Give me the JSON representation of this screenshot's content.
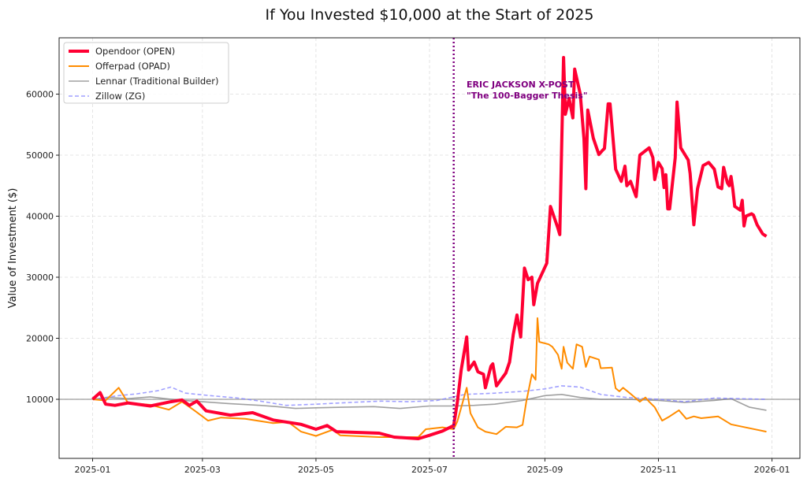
{
  "chart_data": {
    "type": "line",
    "title": "If You Invested $10,000 at the Start of 2025",
    "xlabel": "",
    "ylabel": "Value of Investment ($)",
    "xlim": [
      "2024-12-14",
      "2026-01-16"
    ],
    "ylim": [
      320,
      69230
    ],
    "x_ticks": [
      "2025-01",
      "2025-03",
      "2025-05",
      "2025-07",
      "2025-09",
      "2025-11",
      "2026-01"
    ],
    "y_ticks": [
      10000,
      20000,
      30000,
      40000,
      50000,
      60000
    ],
    "grid": true,
    "legend_position": "top-left",
    "reference_line": {
      "y": 10000,
      "color": "#999999"
    },
    "event_line": {
      "x": "2025-07-14",
      "color": "#800080",
      "label_line1": "ERIC JACKSON X-POST",
      "label_line2": "\"The 100-Bagger Thesis\""
    },
    "series": [
      {
        "name": "Opendoor (OPEN)",
        "color": "#ff0033",
        "style": "solid-thick",
        "x": [
          "2025-01-01",
          "2025-01-05",
          "2025-01-08",
          "2025-01-13",
          "2025-01-20",
          "2025-02-01",
          "2025-02-12",
          "2025-02-18",
          "2025-02-22",
          "2025-02-26",
          "2025-03-03",
          "2025-03-16",
          "2025-03-28",
          "2025-04-08",
          "2025-04-23",
          "2025-05-01",
          "2025-05-07",
          "2025-05-12",
          "2025-06-04",
          "2025-06-12",
          "2025-06-25",
          "2025-07-01",
          "2025-07-08",
          "2025-07-14",
          "2025-07-16",
          "2025-07-18",
          "2025-07-21",
          "2025-07-22",
          "2025-07-25",
          "2025-07-27",
          "2025-07-30",
          "2025-07-31",
          "2025-08-03",
          "2025-08-04",
          "2025-08-06",
          "2025-08-11",
          "2025-08-13",
          "2025-08-15",
          "2025-08-17",
          "2025-08-19",
          "2025-08-21",
          "2025-08-23",
          "2025-08-25",
          "2025-08-26",
          "2025-08-28",
          "2025-09-02",
          "2025-09-04",
          "2025-09-08",
          "2025-09-09",
          "2025-09-11",
          "2025-09-12",
          "2025-09-13",
          "2025-09-14",
          "2025-09-16",
          "2025-09-17",
          "2025-09-20",
          "2025-09-22",
          "2025-09-23",
          "2025-09-24",
          "2025-09-27",
          "2025-09-30",
          "2025-10-02",
          "2025-10-03",
          "2025-10-05",
          "2025-10-06",
          "2025-10-09",
          "2025-10-12",
          "2025-10-14",
          "2025-10-15",
          "2025-10-17",
          "2025-10-20",
          "2025-10-22",
          "2025-10-27",
          "2025-10-29",
          "2025-10-30",
          "2025-11-01",
          "2025-11-03",
          "2025-11-04",
          "2025-11-05",
          "2025-11-06",
          "2025-11-07",
          "2025-11-10",
          "2025-11-11",
          "2025-11-13",
          "2025-11-17",
          "2025-11-18",
          "2025-11-20",
          "2025-11-22",
          "2025-11-25",
          "2025-11-28",
          "2025-12-01",
          "2025-12-03",
          "2025-12-05",
          "2025-12-06",
          "2025-12-08",
          "2025-12-09",
          "2025-12-10",
          "2025-12-11",
          "2025-12-12",
          "2025-12-15",
          "2025-12-16",
          "2025-12-17",
          "2025-12-18",
          "2025-12-21",
          "2025-12-22",
          "2025-12-24",
          "2025-12-27",
          "2025-12-29"
        ],
        "values": [
          10000,
          11100,
          9200,
          9000,
          9400,
          8900,
          9600,
          9900,
          9000,
          9700,
          8100,
          7400,
          7800,
          6600,
          5900,
          5100,
          5700,
          4700,
          4450,
          3800,
          3550,
          4100,
          4800,
          5700,
          9600,
          14800,
          20200,
          14800,
          16100,
          14500,
          14100,
          11900,
          15400,
          15800,
          12200,
          14300,
          16100,
          20600,
          23800,
          20200,
          31500,
          29600,
          30000,
          25500,
          29000,
          32300,
          41600,
          38000,
          37000,
          66000,
          56700,
          58000,
          59300,
          56100,
          64100,
          60000,
          52700,
          44500,
          57400,
          52800,
          50100,
          50800,
          51100,
          58400,
          58400,
          47700,
          45700,
          48200,
          45000,
          45700,
          43200,
          50000,
          51200,
          49600,
          46000,
          48800,
          47800,
          44700,
          46800,
          41200,
          41200,
          49600,
          58700,
          51200,
          49200,
          47000,
          38600,
          44500,
          48300,
          48800,
          47700,
          44800,
          44500,
          48000,
          45500,
          45000,
          46500,
          44300,
          41600,
          41000,
          42600,
          38400,
          40000,
          40400,
          40200,
          38600,
          37100,
          36700
        ]
      },
      {
        "name": "Offerpad (OPAD)",
        "color": "#ff8c00",
        "style": "solid",
        "x": [
          "2025-01-01",
          "2025-01-08",
          "2025-01-15",
          "2025-01-20",
          "2025-02-01",
          "2025-02-11",
          "2025-02-18",
          "2025-02-25",
          "2025-03-04",
          "2025-03-11",
          "2025-03-24",
          "2025-04-08",
          "2025-04-16",
          "2025-04-23",
          "2025-05-01",
          "2025-05-10",
          "2025-05-14",
          "2025-06-04",
          "2025-06-25",
          "2025-06-29",
          "2025-07-08",
          "2025-07-14",
          "2025-07-16",
          "2025-07-21",
          "2025-07-23",
          "2025-07-27",
          "2025-07-31",
          "2025-08-06",
          "2025-08-11",
          "2025-08-17",
          "2025-08-20",
          "2025-08-22",
          "2025-08-25",
          "2025-08-27",
          "2025-08-28",
          "2025-08-29",
          "2025-09-03",
          "2025-09-05",
          "2025-09-08",
          "2025-09-10",
          "2025-09-11",
          "2025-09-13",
          "2025-09-16",
          "2025-09-18",
          "2025-09-21",
          "2025-09-23",
          "2025-09-25",
          "2025-09-30",
          "2025-10-01",
          "2025-10-07",
          "2025-10-09",
          "2025-10-11",
          "2025-10-13",
          "2025-10-17",
          "2025-10-22",
          "2025-10-25",
          "2025-10-27",
          "2025-10-30",
          "2025-11-03",
          "2025-11-07",
          "2025-11-12",
          "2025-11-16",
          "2025-11-20",
          "2025-11-24",
          "2025-12-03",
          "2025-12-10",
          "2025-12-13",
          "2025-12-24",
          "2025-12-29"
        ],
        "values": [
          10000,
          9800,
          11900,
          9400,
          9100,
          8300,
          9600,
          8100,
          6500,
          7000,
          6800,
          6100,
          6300,
          4700,
          4000,
          5000,
          4100,
          3800,
          3800,
          5100,
          5400,
          5100,
          6400,
          11900,
          7700,
          5400,
          4700,
          4300,
          5500,
          5400,
          5800,
          9600,
          14100,
          13200,
          23300,
          19400,
          19000,
          18600,
          17300,
          15000,
          18600,
          16000,
          15000,
          19000,
          18600,
          15300,
          17000,
          16500,
          15100,
          15200,
          11800,
          11300,
          11900,
          10900,
          9600,
          10300,
          9600,
          8700,
          6500,
          7200,
          8200,
          6800,
          7200,
          6900,
          7200,
          5900,
          5700,
          5000,
          4700
        ]
      },
      {
        "name": "Lennar (Traditional Builder)",
        "color": "#888888",
        "style": "solid-thin",
        "x": [
          "2025-01-01",
          "2025-01-10",
          "2025-01-20",
          "2025-02-01",
          "2025-02-15",
          "2025-03-01",
          "2025-03-15",
          "2025-04-01",
          "2025-04-10",
          "2025-04-20",
          "2025-05-01",
          "2025-05-15",
          "2025-06-01",
          "2025-06-15",
          "2025-07-01",
          "2025-07-14",
          "2025-07-25",
          "2025-08-05",
          "2025-08-20",
          "2025-09-01",
          "2025-09-10",
          "2025-09-20",
          "2025-10-01",
          "2025-10-15",
          "2025-11-01",
          "2025-11-15",
          "2025-12-01",
          "2025-12-10",
          "2025-12-20",
          "2025-12-29"
        ],
        "values": [
          10000,
          10300,
          10100,
          10400,
          9900,
          9600,
          9300,
          9000,
          8800,
          8500,
          8600,
          8700,
          8800,
          8500,
          8900,
          8900,
          9000,
          9200,
          9800,
          10600,
          10800,
          10300,
          10000,
          10000,
          9800,
          9500,
          9800,
          10100,
          8700,
          8200
        ]
      },
      {
        "name": "Zillow (ZG)",
        "color": "#8080ff",
        "style": "dashed",
        "x": [
          "2025-01-01",
          "2025-01-15",
          "2025-01-25",
          "2025-02-05",
          "2025-02-12",
          "2025-02-20",
          "2025-03-05",
          "2025-03-20",
          "2025-04-01",
          "2025-04-15",
          "2025-05-01",
          "2025-05-20",
          "2025-06-05",
          "2025-06-20",
          "2025-07-05",
          "2025-07-20",
          "2025-08-05",
          "2025-08-20",
          "2025-09-01",
          "2025-09-10",
          "2025-09-20",
          "2025-10-01",
          "2025-10-15",
          "2025-11-01",
          "2025-11-15",
          "2025-12-01",
          "2025-12-15",
          "2025-12-29"
        ],
        "values": [
          10000,
          10600,
          10900,
          11400,
          12000,
          11000,
          10600,
          10200,
          9700,
          9000,
          9200,
          9500,
          9700,
          9600,
          9800,
          10800,
          11000,
          11300,
          11700,
          12200,
          12000,
          10800,
          10300,
          10000,
          9600,
          10200,
          10100,
          10000
        ]
      }
    ]
  }
}
